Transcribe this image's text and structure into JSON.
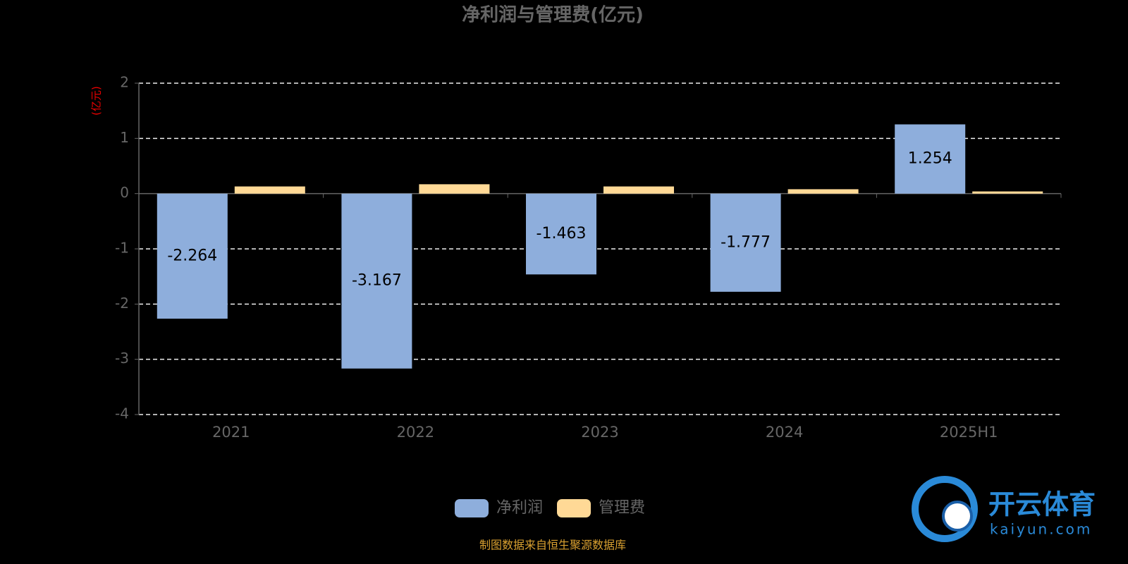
{
  "chart_data": {
    "type": "bar",
    "title": "净利润与管理费(亿元)",
    "y_axis_label": "(亿元)",
    "categories": [
      "2021",
      "2022",
      "2023",
      "2024",
      "2025H1"
    ],
    "series": [
      {
        "name": "净利润",
        "color": "#8eaedc",
        "values": [
          -2.264,
          -3.167,
          -1.463,
          -1.777,
          1.254
        ],
        "labels": true
      },
      {
        "name": "管理费",
        "color": "#ffd996",
        "values": [
          0.13,
          0.17,
          0.13,
          0.08,
          0.04
        ],
        "labels": false
      }
    ],
    "ylim": [
      -4,
      2
    ],
    "yticks": [
      -4,
      -3,
      -2,
      -1,
      0,
      1,
      2
    ],
    "grid": true,
    "legend": "bottom",
    "source": "制图数据来自恒生聚源数据库",
    "watermark": {
      "name": "开云体育",
      "site": "kaiyun.com"
    }
  }
}
